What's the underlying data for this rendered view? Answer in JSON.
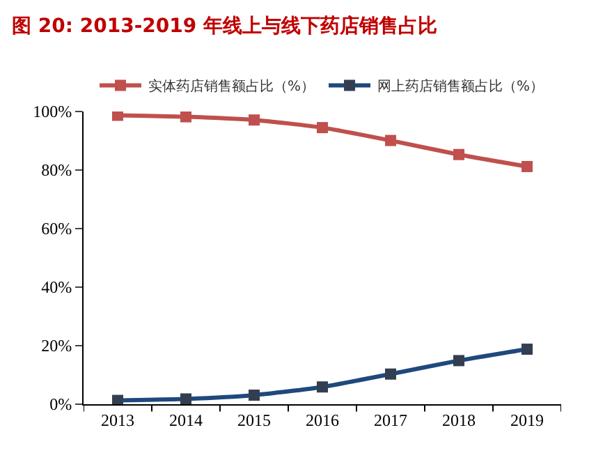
{
  "chart_data": {
    "type": "line",
    "title": "图 20: 2013-2019 年线上与线下药店销售占比",
    "categories": [
      "2013",
      "2014",
      "2015",
      "2016",
      "2017",
      "2018",
      "2019"
    ],
    "series": [
      {
        "name": "实体药店销售额占比（%）",
        "color": "#c0504d",
        "values": [
          98.7,
          98.2,
          97.1,
          94.5,
          90.1,
          85.3,
          81.2
        ]
      },
      {
        "name": "网上药店销售额占比（%）",
        "color": "#1f497d",
        "values": [
          1.3,
          1.8,
          3.1,
          5.9,
          10.3,
          14.9,
          18.8
        ]
      }
    ],
    "ylim": [
      0,
      100
    ],
    "yticks": [
      {
        "value": 0,
        "label": "0%"
      },
      {
        "value": 20,
        "label": "20%"
      },
      {
        "value": 40,
        "label": "40%"
      },
      {
        "value": 60,
        "label": "60%"
      },
      {
        "value": 80,
        "label": "80%"
      },
      {
        "value": 100,
        "label": "100%"
      }
    ],
    "legend": "top",
    "marker": "square",
    "line_style": "solid"
  }
}
